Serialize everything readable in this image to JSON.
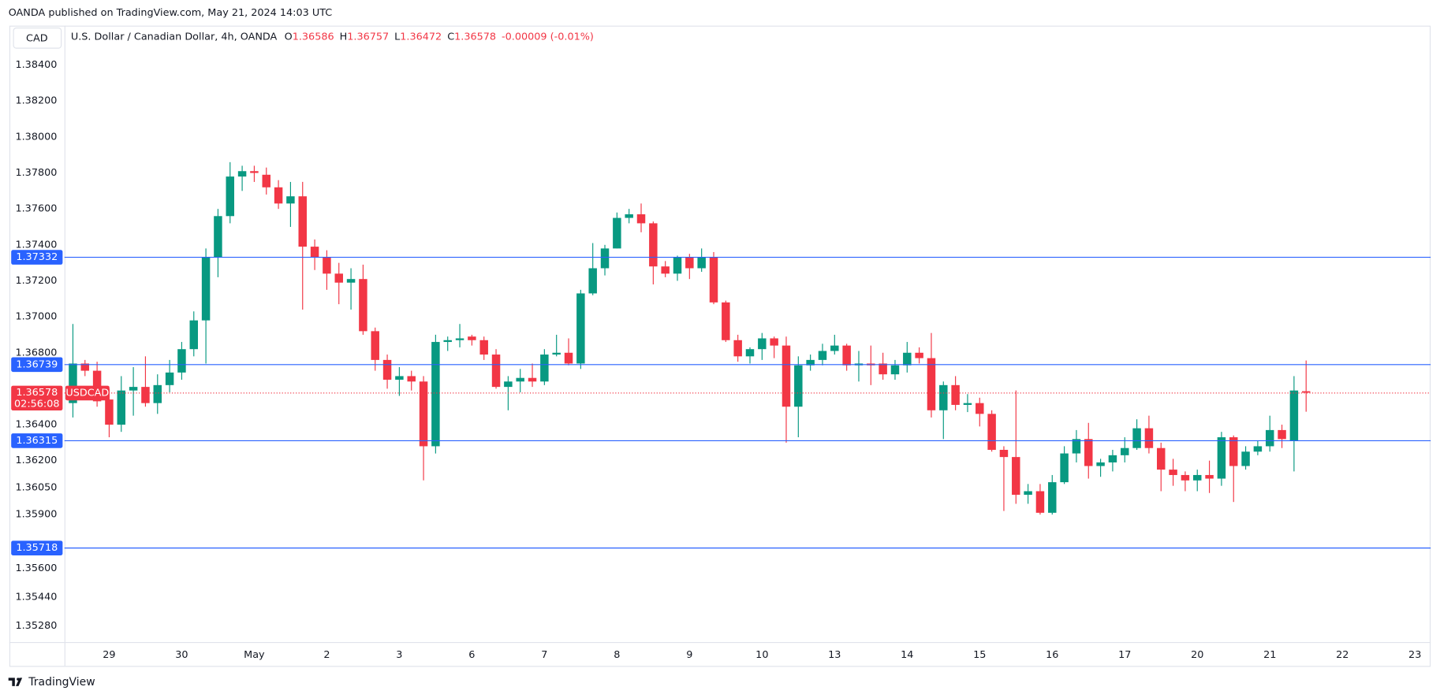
{
  "header": "OANDA published on TradingView.com, May 21, 2024 14:03 UTC",
  "footer": "TradingView",
  "chart_data": {
    "type": "candlestick",
    "currency": "CAD",
    "title": "U.S. Dollar / Canadian Dollar, 4h, OANDA",
    "ohlc_legend": [
      {
        "label": "O",
        "value": 1.36586
      },
      {
        "label": "H",
        "value": 1.36757
      },
      {
        "label": "L",
        "value": 1.36472
      },
      {
        "label": "C",
        "value": 1.36578
      }
    ],
    "change": "-0.00009 (-0.01%)",
    "up_color": "#089981",
    "down_color": "#f23645",
    "level_color": "#2962ff",
    "ylim": [
      1.35191,
      1.38619
    ],
    "yticks": [
      {
        "value": 1.384,
        "label": "1.38400"
      },
      {
        "value": 1.382,
        "label": "1.38200"
      },
      {
        "value": 1.38,
        "label": "1.38000"
      },
      {
        "value": 1.378,
        "label": "1.37800"
      },
      {
        "value": 1.376,
        "label": "1.37600"
      },
      {
        "value": 1.374,
        "label": "1.37400"
      },
      {
        "value": 1.372,
        "label": "1.37200"
      },
      {
        "value": 1.37,
        "label": "1.37000"
      },
      {
        "value": 1.368,
        "label": "1.36800"
      },
      {
        "value": 1.364,
        "label": "1.36400"
      },
      {
        "value": 1.362,
        "label": "1.36200"
      },
      {
        "value": 1.3605,
        "label": "1.36050"
      },
      {
        "value": 1.359,
        "label": "1.35900"
      },
      {
        "value": 1.356,
        "label": "1.35600"
      },
      {
        "value": 1.3544,
        "label": "1.35440"
      },
      {
        "value": 1.3528,
        "label": "1.35280"
      }
    ],
    "levels": [
      1.37332,
      1.36739,
      1.36315,
      1.35718
    ],
    "last": {
      "symbol": "USDCAD",
      "price": 1.36578,
      "countdown": "02:56:08"
    },
    "categories": [
      null,
      null,
      null,
      "29",
      null,
      null,
      null,
      null,
      null,
      "30",
      null,
      null,
      null,
      null,
      null,
      "May",
      null,
      null,
      null,
      null,
      null,
      "2",
      null,
      null,
      null,
      null,
      null,
      "3",
      null,
      null,
      null,
      null,
      null,
      "6",
      null,
      null,
      null,
      null,
      null,
      "7",
      null,
      null,
      null,
      null,
      null,
      "8",
      null,
      null,
      null,
      null,
      null,
      "9",
      null,
      null,
      null,
      null,
      null,
      "10",
      null,
      null,
      null,
      null,
      null,
      "13",
      null,
      null,
      null,
      null,
      null,
      "14",
      null,
      null,
      null,
      null,
      null,
      "15",
      null,
      null,
      null,
      null,
      null,
      "16",
      null,
      null,
      null,
      null,
      null,
      "17",
      null,
      null,
      null,
      null,
      null,
      "20",
      null,
      null,
      null,
      null,
      null,
      "21",
      null,
      null,
      null,
      null,
      null,
      "22",
      null,
      null,
      null,
      null,
      null,
      "23",
      null
    ],
    "open": [
      1.3652,
      1.3674,
      1.367,
      1.3654,
      1.364,
      1.3659,
      1.3661,
      1.3652,
      1.3662,
      1.3669,
      1.3682,
      1.3698,
      1.3733,
      1.3756,
      1.3778,
      1.3781,
      1.3779,
      1.3772,
      1.3763,
      1.3767,
      1.3739,
      1.3733,
      1.3724,
      1.3719,
      1.3721,
      1.3692,
      1.3676,
      1.3665,
      1.3667,
      1.3664,
      1.3628,
      1.3686,
      1.3687,
      1.3689,
      1.3687,
      1.3679,
      1.3661,
      1.3664,
      1.3666,
      1.3664,
      1.3679,
      1.368,
      1.3674,
      1.3713,
      1.3727,
      1.3738,
      1.3755,
      1.3757,
      1.3752,
      1.3728,
      1.3724,
      1.3733,
      1.3727,
      1.3733,
      1.3708,
      1.3687,
      1.3678,
      1.3682,
      1.3688,
      1.3684,
      1.365,
      1.3673,
      1.3676,
      1.3681,
      1.3684,
      1.3673,
      1.3674,
      1.3674,
      1.3668,
      1.3673,
      1.368,
      1.3677,
      1.3648,
      1.3662,
      1.3651,
      1.3652,
      1.3646,
      1.3626,
      1.3622,
      1.3601,
      1.3603,
      1.3591,
      1.3608,
      1.3624,
      1.3632,
      1.3617,
      1.3619,
      1.3623,
      1.3627,
      1.3638,
      1.3627,
      1.3615,
      1.3612,
      1.3609,
      1.3612,
      1.361,
      1.3633,
      1.3617,
      1.3625,
      1.3628,
      1.3637,
      1.3631,
      1.36586,
      null,
      null,
      null,
      null,
      null,
      null,
      null,
      null,
      null,
      null
    ],
    "high": [
      1.3696,
      1.3676,
      1.3675,
      1.366,
      1.3667,
      1.3672,
      1.3678,
      1.3668,
      1.3676,
      1.3686,
      1.3703,
      1.3738,
      1.376,
      1.3786,
      1.3784,
      1.3784,
      1.3783,
      1.3776,
      1.3775,
      1.3775,
      1.3743,
      1.3737,
      1.373,
      1.3727,
      1.3729,
      1.3694,
      1.3679,
      1.3672,
      1.367,
      1.3667,
      1.369,
      1.3689,
      1.3696,
      1.369,
      1.3689,
      1.3682,
      1.3667,
      1.3671,
      1.3674,
      1.3682,
      1.369,
      1.3688,
      1.3715,
      1.3741,
      1.374,
      1.3758,
      1.376,
      1.3763,
      1.3753,
      1.3731,
      1.3734,
      1.3735,
      1.3738,
      1.3736,
      1.3709,
      1.369,
      1.3683,
      1.3691,
      1.3689,
      1.3689,
      1.3678,
      1.3679,
      1.3685,
      1.369,
      1.3685,
      1.3681,
      1.3684,
      1.368,
      1.3676,
      1.3686,
      1.3683,
      1.3691,
      1.3664,
      1.3667,
      1.3657,
      1.3655,
      1.3648,
      1.3628,
      1.3659,
      1.3607,
      1.3607,
      1.3612,
      1.3628,
      1.3637,
      1.3641,
      1.3621,
      1.3626,
      1.3633,
      1.3643,
      1.3645,
      1.363,
      1.3621,
      1.3614,
      1.3615,
      1.362,
      1.3636,
      1.3634,
      1.3628,
      1.3631,
      1.3645,
      1.364,
      1.3667,
      1.36757,
      null,
      null,
      null,
      null,
      null,
      null,
      null,
      null,
      null,
      null
    ],
    "low": [
      1.3644,
      1.3667,
      1.365,
      1.3633,
      1.3636,
      1.3645,
      1.365,
      1.3646,
      1.3658,
      1.3665,
      1.3678,
      1.3674,
      1.3722,
      1.3752,
      1.377,
      1.3775,
      1.3768,
      1.376,
      1.375,
      1.3704,
      1.3726,
      1.3715,
      1.3707,
      1.3704,
      1.369,
      1.367,
      1.366,
      1.3656,
      1.3659,
      1.3609,
      1.3624,
      1.3681,
      1.3683,
      1.3684,
      1.3676,
      1.366,
      1.3648,
      1.3658,
      1.3661,
      1.3662,
      1.3678,
      1.3673,
      1.3671,
      1.3712,
      1.3723,
      1.3738,
      1.3752,
      1.3747,
      1.3718,
      1.3722,
      1.372,
      1.3721,
      1.3725,
      1.3707,
      1.3686,
      1.3675,
      1.3674,
      1.3676,
      1.3677,
      1.363,
      1.3633,
      1.367,
      1.3673,
      1.3679,
      1.367,
      1.3664,
      1.3662,
      1.3665,
      1.3665,
      1.3669,
      1.3674,
      1.3644,
      1.3632,
      1.3648,
      1.3647,
      1.3639,
      1.3625,
      1.3592,
      1.3596,
      1.3596,
      1.359,
      1.359,
      1.3607,
      1.3619,
      1.361,
      1.3611,
      1.3614,
      1.3619,
      1.3626,
      1.3624,
      1.3603,
      1.3606,
      1.3603,
      1.3603,
      1.3602,
      1.3606,
      1.3597,
      1.3615,
      1.3623,
      1.3625,
      1.3627,
      1.3614,
      1.36472,
      null,
      null,
      null,
      null,
      null,
      null,
      null,
      null,
      null,
      null
    ],
    "close": [
      1.3674,
      1.367,
      1.3653,
      1.364,
      1.3659,
      1.3661,
      1.3652,
      1.3662,
      1.3669,
      1.3682,
      1.3698,
      1.3733,
      1.3756,
      1.3778,
      1.3781,
      1.378,
      1.3772,
      1.3763,
      1.3767,
      1.3739,
      1.3733,
      1.3724,
      1.3719,
      1.3721,
      1.3692,
      1.3676,
      1.3665,
      1.3667,
      1.3664,
      1.3628,
      1.3686,
      1.3687,
      1.3688,
      1.3687,
      1.3679,
      1.3661,
      1.3664,
      1.3666,
      1.3664,
      1.3679,
      1.368,
      1.3674,
      1.3713,
      1.3727,
      1.3738,
      1.3755,
      1.3757,
      1.3752,
      1.3728,
      1.3724,
      1.3733,
      1.3727,
      1.3733,
      1.3708,
      1.3687,
      1.3678,
      1.3682,
      1.3688,
      1.3684,
      1.365,
      1.3673,
      1.3676,
      1.3681,
      1.3684,
      1.3673,
      1.3674,
      1.3673,
      1.3668,
      1.3673,
      1.368,
      1.3677,
      1.3648,
      1.3662,
      1.3651,
      1.3652,
      1.3646,
      1.3626,
      1.3622,
      1.3601,
      1.3603,
      1.3591,
      1.3608,
      1.3624,
      1.3632,
      1.3617,
      1.3619,
      1.3623,
      1.3627,
      1.3638,
      1.3627,
      1.3615,
      1.3612,
      1.3609,
      1.3612,
      1.361,
      1.3633,
      1.3617,
      1.3625,
      1.3628,
      1.3637,
      1.3632,
      1.3659,
      1.36578,
      null,
      null,
      null,
      null,
      null,
      null,
      null,
      null,
      null,
      null
    ]
  }
}
